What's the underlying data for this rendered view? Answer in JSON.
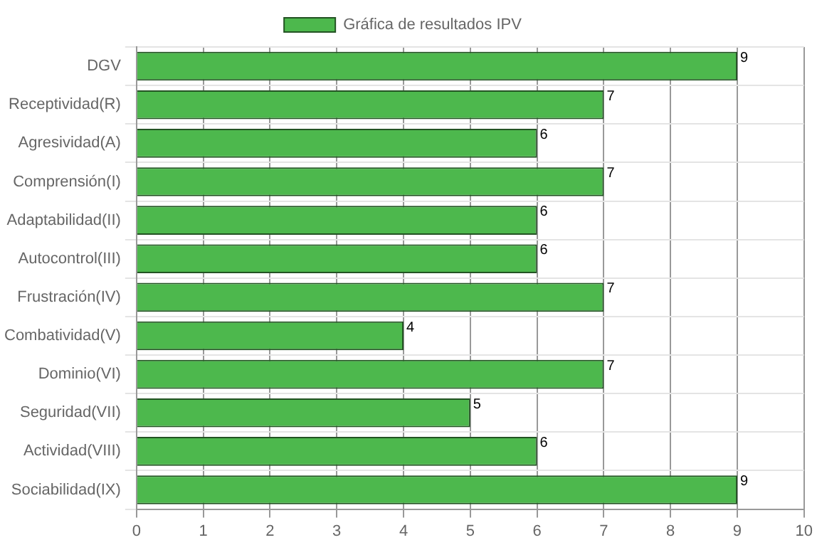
{
  "chart_data": {
    "type": "bar",
    "orientation": "horizontal",
    "categories": [
      "DGV",
      "Receptividad(R)",
      "Agresividad(A)",
      "Comprensión(I)",
      "Adaptabilidad(II)",
      "Autocontrol(III)",
      "Frustración(IV)",
      "Combatividad(V)",
      "Dominio(VI)",
      "Seguridad(VII)",
      "Actividad(VIII)",
      "Sociabilidad(IX)"
    ],
    "series": [
      {
        "name": "Gráfica de resultados IPV",
        "color": "#4db84d",
        "values": [
          9,
          7,
          6,
          7,
          6,
          6,
          7,
          4,
          7,
          5,
          6,
          9
        ]
      }
    ],
    "xlim": [
      0,
      10
    ],
    "xticks": [
      0,
      1,
      2,
      3,
      4,
      5,
      6,
      7,
      8,
      9,
      10
    ],
    "grid": true,
    "legend": "top",
    "data_labels": true
  }
}
